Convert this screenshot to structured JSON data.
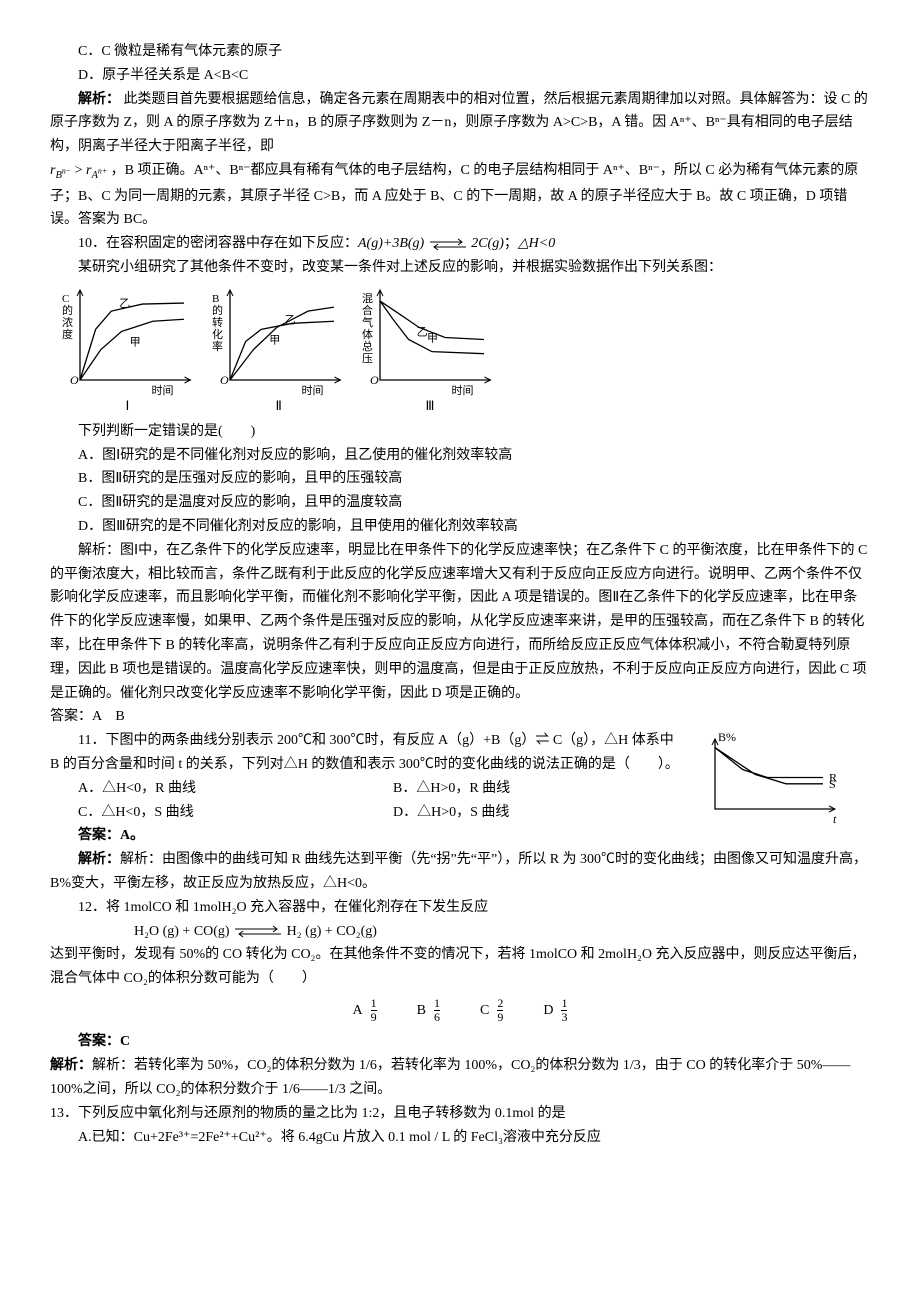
{
  "q_prev": {
    "optC": "C．C 微粒是稀有气体元素的原子",
    "optD": "D．原子半径关系是 A<B<C",
    "label_analysis": "解析：",
    "analysis": "此类题目首先要根据题给信息，确定各元素在周期表中的相对位置，然后根据元素周期律加以对照。具体解答为：设 C 的原子序数为 Z，则 A 的原子序数为 Z＋n，B 的原子序数则为 Z－n，则原子序数为 A>C>B，A 错。因 Aⁿ⁺、Bⁿ⁻具有相同的电子层结构，阴离子半径大于阳离子半径，即 ",
    "analysis2": "，B 项正确。Aⁿ⁺、Bⁿ⁻都应具有稀有气体的电子层结构，C 的电子层结构相同于 Aⁿ⁺、Bⁿ⁻，所以 C 必为稀有气体元素的原子；B、C 为同一周期的元素，其原子半径 C>B，而 A 应处于 B、C 的下一周期，故 A 的原子半径应大于 B。故 C 项正确，D 项错误。答案为 BC。"
  },
  "q10": {
    "title": "10．在容积固定的密闭容器中存在如下反应：A(g)+3B(g)  ⇌  2C(g)；△H<0",
    "body": "某研究小组研究了其他条件不变时，改变某一条件对上述反应的影响，并根据实验数据作出下列关系图：",
    "charts": {
      "type": "line-triptych",
      "axis_color": "#000000",
      "background": "#ffffff",
      "line_width": 1.3,
      "font_size": 12,
      "panels": [
        {
          "roman": "Ⅰ",
          "ylabel": "C的浓度",
          "xlabel": "时间",
          "curves": [
            {
              "label": "乙",
              "points": [
                [
                  0,
                  0
                ],
                [
                  12,
                  50
                ],
                [
                  24,
                  68
                ],
                [
                  48,
                  75
                ],
                [
                  80,
                  76
                ]
              ]
            },
            {
              "label": "甲",
              "points": [
                [
                  0,
                  0
                ],
                [
                  16,
                  30
                ],
                [
                  32,
                  48
                ],
                [
                  56,
                  58
                ],
                [
                  80,
                  60
                ]
              ]
            }
          ]
        },
        {
          "roman": "Ⅱ",
          "ylabel": "B的转化率",
          "xlabel": "时间",
          "curves": [
            {
              "label": "乙",
              "points": [
                [
                  0,
                  0
                ],
                [
                  18,
                  30
                ],
                [
                  36,
                  52
                ],
                [
                  60,
                  68
                ],
                [
                  80,
                  72
                ]
              ]
            },
            {
              "label": "甲",
              "points": [
                [
                  0,
                  0
                ],
                [
                  12,
                  38
                ],
                [
                  24,
                  50
                ],
                [
                  48,
                  56
                ],
                [
                  80,
                  58
                ]
              ]
            }
          ]
        },
        {
          "roman": "Ⅲ",
          "ylabel": "混合气体总压",
          "xlabel": "时间",
          "curves": [
            {
              "label": "乙",
              "points": [
                [
                  0,
                  78
                ],
                [
                  10,
                  60
                ],
                [
                  22,
                  40
                ],
                [
                  40,
                  28
                ],
                [
                  80,
                  26
                ]
              ]
            },
            {
              "label": "甲",
              "points": [
                [
                  0,
                  78
                ],
                [
                  14,
                  66
                ],
                [
                  30,
                  52
                ],
                [
                  50,
                  42
                ],
                [
                  80,
                  40
                ]
              ]
            }
          ]
        }
      ]
    },
    "stem2": "下列判断一定错误的是(　　)",
    "optA": "A．图Ⅰ研究的是不同催化剂对反应的影响，且乙使用的催化剂效率较高",
    "optB": "B．图Ⅱ研究的是压强对反应的影响，且甲的压强较高",
    "optC": "C．图Ⅱ研究的是温度对反应的影响，且甲的温度较高",
    "optD": "D．图Ⅲ研究的是不同催化剂对反应的影响，且甲使用的催化剂效率较高",
    "analysis": "解析：图Ⅰ中，在乙条件下的化学反应速率，明显比在甲条件下的化学反应速率快；在乙条件下 C 的平衡浓度，比在甲条件下的 C 的平衡浓度大，相比较而言，条件乙既有利于此反应的化学反应速率增大又有利于反应向正反应方向进行。说明甲、乙两个条件不仅影响化学反应速率，而且影响化学平衡，而催化剂不影响化学平衡，因此 A 项是错误的。图Ⅱ在乙条件下的化学反应速率，比在甲条件下的化学反应速率慢，如果甲、乙两个条件是压强对反应的影响，从化学反应速率来讲，是甲的压强较高，而在乙条件下 B 的转化率，比在甲条件下 B 的转化率高，说明条件乙有利于反应向正反应方向进行，而所给反应正反应气体体积减小，不符合勒夏特列原理，因此 B 项也是错误的。温度高化学反应速率快，则甲的温度高，但是由于正反应放热，不利于反应向正反应方向进行，因此 C 项是正确的。催化剂只改变化学反应速率不影响化学平衡，因此 D 项是正确的。",
    "answer": "答案：A　B"
  },
  "q11": {
    "stem": "11．下图中的两条曲线分别表示 200℃和 300℃时，有反应 A（g）+B（g）⇌ C（g），△H 体系中 B 的百分含量和时间 t 的关系，下列对△H 的数值和表示 300℃时的变化曲线的说法正确的是（　　）。",
    "optA": "A．△H<0，R 曲线",
    "optB": "B．△H>0，R 曲线",
    "optC": "C．△H<0，S 曲线",
    "optD": "D．△H>0，S 曲线",
    "answer": "答案：A。",
    "analysis": "解析：由图像中的曲线可知 R 曲线先达到平衡（先“拐”先“平”），所以 R 为 300℃时的变化曲线；由图像又可知温度升高，B%变大，平衡左移，故正反应为放热反应，△H<0。",
    "chart": {
      "type": "line",
      "ylabel": "B%",
      "xlabel": "t",
      "labels": [
        "R",
        "S"
      ],
      "axis_color": "#000000",
      "line_width": 1.3,
      "curves": {
        "R": [
          [
            0,
            78
          ],
          [
            18,
            50
          ],
          [
            34,
            40
          ],
          [
            70,
            40
          ]
        ],
        "S": [
          [
            0,
            78
          ],
          [
            26,
            44
          ],
          [
            46,
            32
          ],
          [
            70,
            32
          ]
        ]
      }
    }
  },
  "q12": {
    "stem": "12．将 1molCO 和 1molH₂O 充入容器中，在催化剂存在下发生反应",
    "equation": "H₂O (g) + CO(g)  ⇌  H₂ (g) + CO₂(g)",
    "body": "达到平衡时，发现有 50%的 CO 转化为 CO₂。在其他条件不变的情况下，若将 1molCO 和 2molH₂O 充入反应器中，则反应达平衡后，混合气体中 CO₂的体积分数可能为（　　）",
    "opts": {
      "A": [
        "1",
        "9"
      ],
      "B": [
        "1",
        "6"
      ],
      "C": [
        "2",
        "9"
      ],
      "D": [
        "1",
        "3"
      ]
    },
    "answer": "答案：C",
    "analysis": "解析：若转化率为 50%，CO₂的体积分数为 1/6，若转化率为 100%，CO₂的体积分数为 1/3，由于 CO 的转化率介于 50%——100%之间，所以 CO₂的体积分数介于 1/6——1/3 之间。"
  },
  "q13": {
    "stem": "13．下列反应中氧化剂与还原剂的物质的量之比为 1:2，且电子转移数为 0.1mol 的是",
    "optA": "A.已知：Cu+2Fe³⁺=2Fe²⁺+Cu²⁺。将 6.4gCu 片放入 0.1 mol / L 的 FeCl₃溶液中充分反应"
  }
}
